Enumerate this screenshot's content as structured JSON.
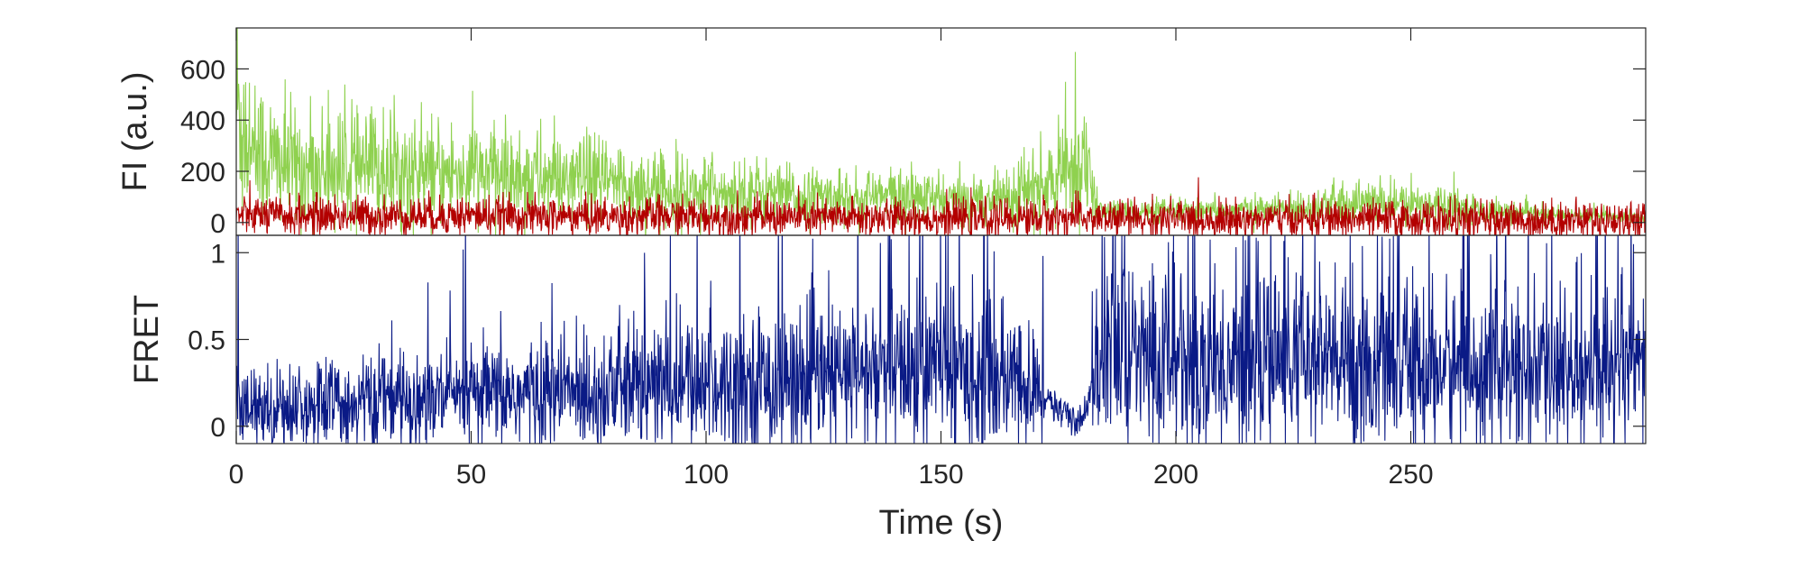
{
  "chart_data": [
    {
      "type": "line",
      "panel": "top",
      "ylabel": "FI (a.u.)",
      "ylim": [
        -50,
        760
      ],
      "xlim": [
        0,
        300
      ],
      "yticks": [
        0,
        200,
        400,
        600
      ],
      "ytick_labels": [
        "0",
        "200",
        "400",
        "600"
      ],
      "series": [
        {
          "key": "donor",
          "color": "#8fd14f",
          "x": [
            0,
            2,
            4,
            6,
            8,
            10,
            15,
            20,
            25,
            30,
            35,
            40,
            45,
            50,
            55,
            60,
            65,
            70,
            75,
            80,
            85,
            90,
            95,
            100,
            105,
            110,
            115,
            120,
            125,
            130,
            135,
            140,
            145,
            150,
            155,
            160,
            165,
            170,
            175,
            180,
            181,
            183,
            185,
            190,
            195,
            200,
            205,
            210,
            215,
            220,
            225,
            230,
            235,
            240,
            245,
            250,
            255,
            260,
            265,
            270,
            275,
            280,
            285,
            290,
            295,
            300
          ],
          "y": [
            470,
            340,
            290,
            260,
            240,
            230,
            205,
            210,
            200,
            215,
            205,
            180,
            190,
            195,
            185,
            180,
            175,
            165,
            160,
            155,
            140,
            135,
            125,
            120,
            120,
            125,
            110,
            100,
            100,
            95,
            100,
            105,
            95,
            90,
            85,
            100,
            110,
            130,
            160,
            260,
            200,
            60,
            40,
            45,
            40,
            45,
            40,
            45,
            50,
            50,
            55,
            65,
            75,
            80,
            75,
            70,
            80,
            65,
            45,
            40,
            35,
            30,
            28,
            25,
            22,
            20
          ]
        },
        {
          "key": "acceptor",
          "color": "#b30000",
          "x": [
            0,
            10,
            20,
            30,
            40,
            50,
            60,
            70,
            80,
            90,
            100,
            110,
            120,
            130,
            140,
            150,
            160,
            170,
            180,
            185,
            190,
            200,
            210,
            220,
            230,
            240,
            250,
            260,
            270,
            280,
            290,
            300
          ],
          "y": [
            30,
            25,
            28,
            25,
            27,
            28,
            26,
            24,
            22,
            25,
            22,
            22,
            20,
            18,
            20,
            18,
            15,
            20,
            20,
            15,
            15,
            15,
            13,
            13,
            12,
            12,
            12,
            10,
            10,
            10,
            10,
            10
          ]
        }
      ]
    },
    {
      "type": "line",
      "panel": "bottom",
      "ylabel": "FRET",
      "xlabel": "Time (s)",
      "ylim": [
        -0.1,
        1.1
      ],
      "xlim": [
        0,
        300
      ],
      "yticks": [
        0,
        0.5,
        1
      ],
      "ytick_labels": [
        "0",
        "0.5",
        "1"
      ],
      "xticks": [
        0,
        50,
        100,
        150,
        200,
        250
      ],
      "xtick_labels": [
        "0",
        "50",
        "100",
        "150",
        "200",
        "250"
      ],
      "series": [
        {
          "key": "fret",
          "color": "#0a1a86",
          "x": [
            0,
            20,
            40,
            60,
            80,
            100,
            120,
            140,
            150,
            160,
            170,
            175,
            180,
            182,
            185,
            190,
            200,
            210,
            220,
            240,
            260,
            280,
            300
          ],
          "y": [
            0.1,
            0.13,
            0.15,
            0.18,
            0.22,
            0.25,
            0.27,
            0.3,
            0.35,
            0.3,
            0.2,
            0.1,
            0.05,
            0.2,
            0.4,
            0.4,
            0.38,
            0.35,
            0.38,
            0.35,
            0.33,
            0.3,
            0.3
          ]
        }
      ]
    }
  ]
}
